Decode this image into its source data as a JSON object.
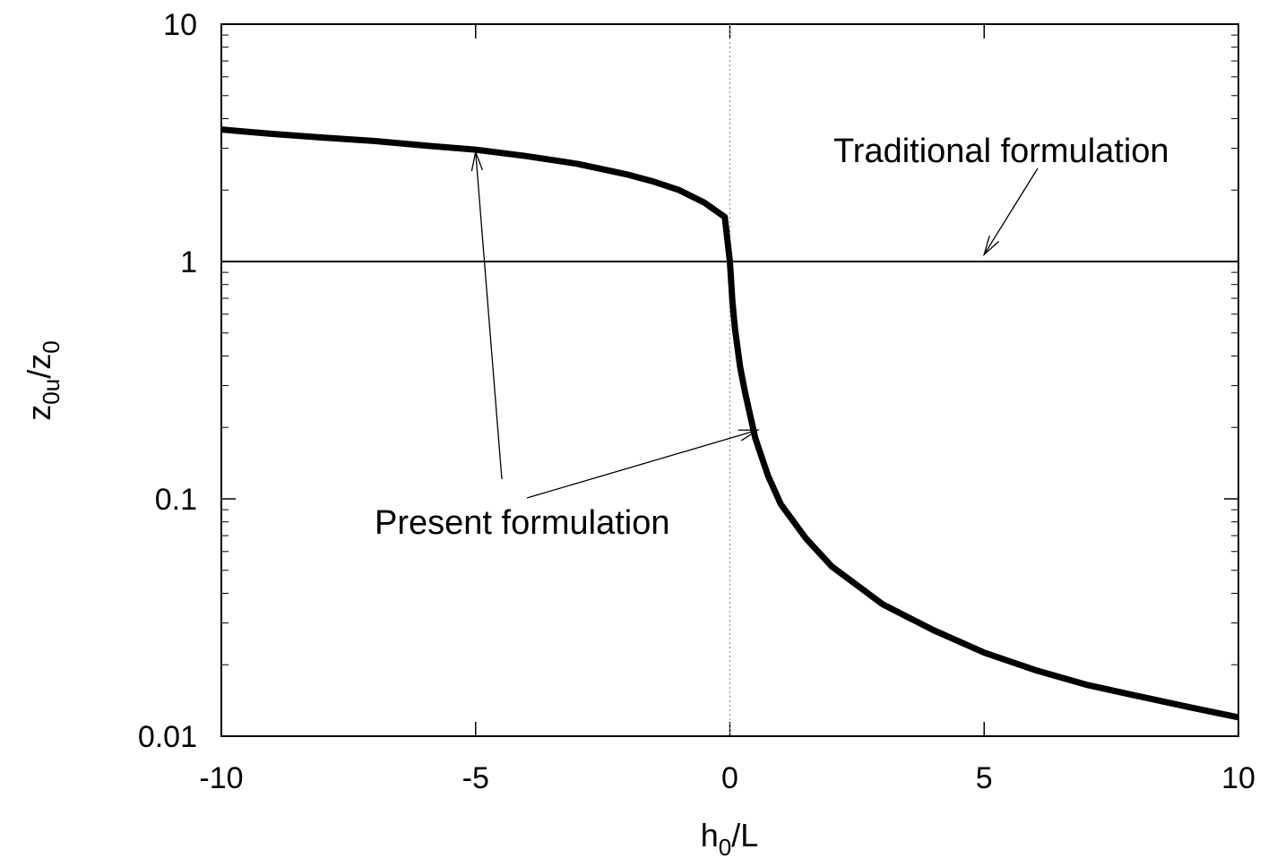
{
  "chart_data": {
    "type": "line",
    "xlabel": {
      "main": "h",
      "sub": "0",
      "rest": "/L"
    },
    "ylabel": {
      "z": "z",
      "sub1": "0u",
      "slash": "/z",
      "sub2": "0"
    },
    "xlim": [
      -10,
      10
    ],
    "ylim": [
      0.01,
      10
    ],
    "yscale": "log",
    "x_ticks": [
      {
        "value": -10,
        "label": "-10"
      },
      {
        "value": -5,
        "label": "-5"
      },
      {
        "value": 0,
        "label": "0"
      },
      {
        "value": 5,
        "label": "5"
      },
      {
        "value": 10,
        "label": "10"
      }
    ],
    "y_ticks": [
      {
        "value": 0.01,
        "label": "0.01"
      },
      {
        "value": 0.1,
        "label": "0.1"
      },
      {
        "value": 1,
        "label": "1"
      },
      {
        "value": 10,
        "label": "10"
      }
    ],
    "series": [
      {
        "style": "thick",
        "x": [
          -10,
          -9,
          -8,
          -7,
          -6,
          -5,
          -4,
          -3,
          -2,
          -1.5,
          -1,
          -0.5,
          -0.3,
          -0.1,
          0,
          0.05,
          0.1,
          0.2,
          0.3,
          0.5,
          0.75,
          1,
          1.5,
          2,
          3,
          4,
          5,
          6,
          7,
          8,
          9,
          10
        ],
        "y": [
          3.6,
          3.45,
          3.33,
          3.22,
          3.08,
          2.96,
          2.78,
          2.58,
          2.32,
          2.17,
          2.0,
          1.77,
          1.65,
          1.54,
          1.0,
          0.68,
          0.52,
          0.36,
          0.28,
          0.18,
          0.125,
          0.095,
          0.068,
          0.052,
          0.036,
          0.028,
          0.0225,
          0.019,
          0.0165,
          0.0148,
          0.0133,
          0.012
        ]
      },
      {
        "style": "thin",
        "x": [
          -10,
          10
        ],
        "y": [
          1,
          1
        ]
      }
    ],
    "reference_lines": [
      {
        "orientation": "vertical",
        "x": 0,
        "style": "dotted"
      }
    ],
    "annotations": [
      {
        "text": "Traditional formulation",
        "arrow_to": {
          "x": 5,
          "y": 1.07
        }
      },
      {
        "text": "Present formulation",
        "arrows_to": [
          {
            "x": -5,
            "y": 2.9
          },
          {
            "x": 0.55,
            "y": 0.195
          }
        ]
      }
    ]
  }
}
